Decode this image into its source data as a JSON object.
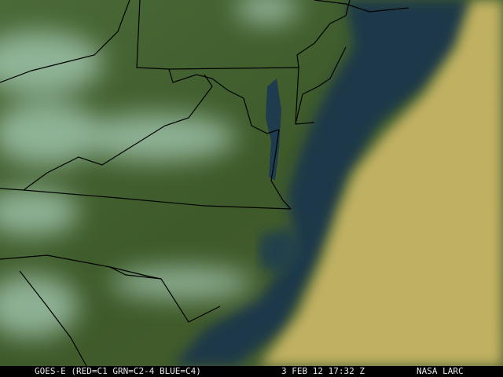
{
  "caption": {
    "satellite": "GOES-E (RED=C1 GRN=C2-4 BLUE=C4)",
    "datetime": "3 FEB 12 17:32 Z",
    "source": "NASA LARC"
  },
  "colors": {
    "land": "#3f5a2c",
    "ocean": "#1d3848",
    "low_cloud": "#c2b060",
    "high_cloud": "#9fc6b0",
    "borders": "#000000"
  }
}
